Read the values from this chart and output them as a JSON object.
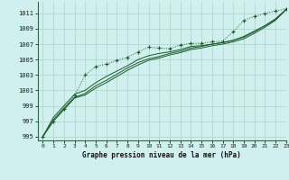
{
  "title": "Graphe pression niveau de la mer (hPa)",
  "background_color": "#cff0ee",
  "grid_color": "#b0d8d0",
  "line_color": "#1a5c28",
  "xlim": [
    -0.5,
    23
  ],
  "ylim": [
    994.5,
    1012.5
  ],
  "yticks": [
    995,
    997,
    999,
    1001,
    1003,
    1005,
    1007,
    1009,
    1011
  ],
  "xticks": [
    0,
    1,
    2,
    3,
    4,
    5,
    6,
    7,
    8,
    9,
    10,
    11,
    12,
    13,
    14,
    15,
    16,
    17,
    18,
    19,
    20,
    21,
    22,
    23
  ],
  "series_dotted": [
    995.0,
    997.0,
    998.6,
    1000.3,
    1003.0,
    1004.1,
    1004.4,
    1004.9,
    1005.3,
    1006.0,
    1006.6,
    1006.5,
    1006.4,
    1006.9,
    1007.1,
    1007.1,
    1007.3,
    1007.4,
    1008.6,
    1010.1,
    1010.6,
    1011.0,
    1011.3,
    1011.6
  ],
  "series_solid": [
    [
      995.0,
      997.5,
      999.0,
      1000.5,
      1001.0,
      1002.0,
      1002.8,
      1003.5,
      1004.2,
      1005.0,
      1005.5,
      1005.8,
      1006.0,
      1006.3,
      1006.7,
      1006.8,
      1007.0,
      1007.2,
      1007.5,
      1008.0,
      1008.7,
      1009.4,
      1010.2,
      1011.5
    ],
    [
      995.0,
      997.2,
      998.7,
      1000.1,
      1000.6,
      1001.6,
      1002.3,
      1003.1,
      1003.9,
      1004.6,
      1005.1,
      1005.4,
      1005.8,
      1006.1,
      1006.5,
      1006.7,
      1007.0,
      1007.2,
      1007.5,
      1007.9,
      1008.6,
      1009.4,
      1010.3,
      1011.5
    ],
    [
      995.0,
      997.0,
      998.5,
      1000.0,
      1000.4,
      1001.3,
      1002.0,
      1002.8,
      1003.6,
      1004.3,
      1004.9,
      1005.2,
      1005.6,
      1005.9,
      1006.3,
      1006.5,
      1006.8,
      1007.0,
      1007.3,
      1007.7,
      1008.4,
      1009.2,
      1010.1,
      1011.5
    ]
  ]
}
